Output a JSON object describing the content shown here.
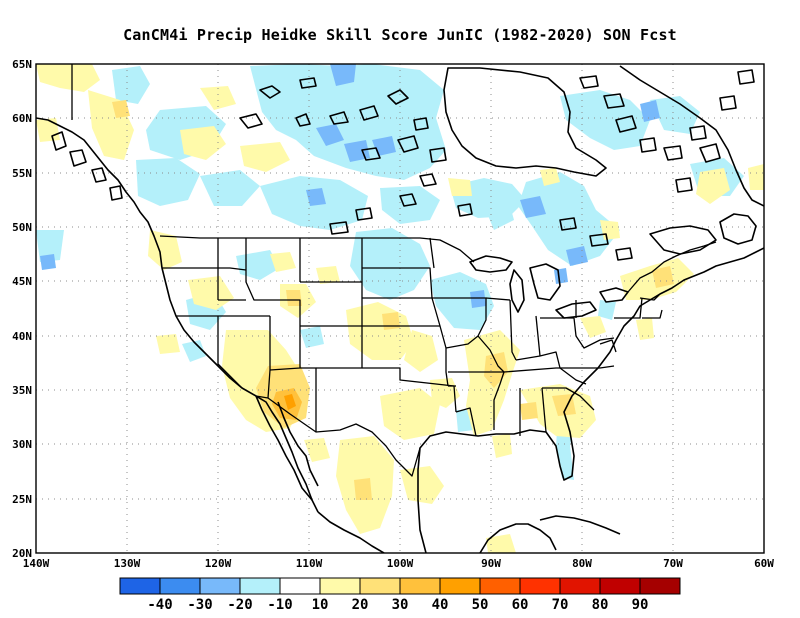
{
  "title": "CanCM4i Precip Heidke Skill Score JunIC (1982-2020) SON Fcst",
  "map": {
    "lat_labels": [
      "65N",
      "60N",
      "55N",
      "50N",
      "45N",
      "40N",
      "35N",
      "30N",
      "25N",
      "20N"
    ],
    "lon_labels": [
      "140W",
      "130W",
      "120W",
      "110W",
      "100W",
      "90W",
      "80W",
      "70W",
      "60W"
    ],
    "lat_range": [
      20,
      65
    ],
    "lon_range": [
      -140,
      -60
    ],
    "gridlines": "dotted"
  },
  "colorbar": {
    "labels": [
      "-40",
      "-30",
      "-20",
      "-10",
      "10",
      "20",
      "30",
      "40",
      "50",
      "60",
      "70",
      "80",
      "90"
    ],
    "colors": [
      "#1e64e6",
      "#3c8cf0",
      "#78b9fa",
      "#b4f0fa",
      "#ffffff",
      "#fffaaa",
      "#ffe178",
      "#ffc13c",
      "#ffa000",
      "#ff6000",
      "#ff3200",
      "#e11400",
      "#c00000",
      "#a50000"
    ]
  },
  "palette": {
    "neg10": "#b4f0fa",
    "neg20": "#78b9fa",
    "neg30": "#3c8cf0",
    "pos10": "#fffaaa",
    "pos20": "#ffe178",
    "pos30": "#ffc13c",
    "pos40": "#ffa000"
  }
}
